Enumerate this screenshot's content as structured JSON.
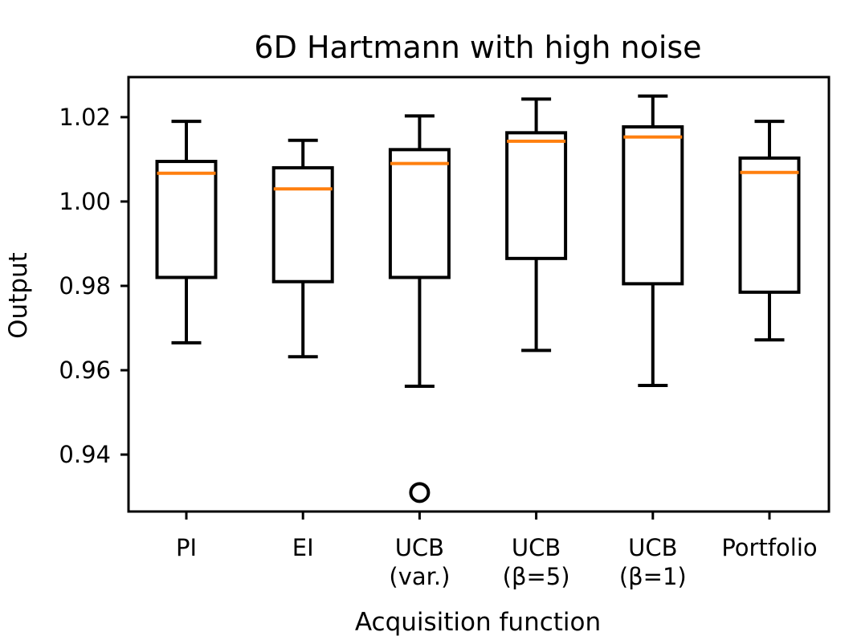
{
  "chart_data": {
    "type": "box",
    "title": "6D Hartmann with high noise",
    "xlabel": "Acquisition function",
    "ylabel": "Output",
    "ylim": [
      0.9265,
      1.0295
    ],
    "yticks": [
      0.94,
      0.96,
      0.98,
      1.0,
      1.02
    ],
    "ytick_labels": [
      "0.94",
      "0.96",
      "0.98",
      "1.00",
      "1.02"
    ],
    "categories": [
      {
        "label_lines": [
          "PI"
        ]
      },
      {
        "label_lines": [
          "EI"
        ]
      },
      {
        "label_lines": [
          "UCB",
          "(var.)"
        ]
      },
      {
        "label_lines": [
          "UCB",
          "(β=5)"
        ]
      },
      {
        "label_lines": [
          "UCB",
          "(β=1)"
        ]
      },
      {
        "label_lines": [
          "Portfolio"
        ]
      }
    ],
    "boxes": [
      {
        "whisker_low": 0.9665,
        "q1": 0.982,
        "median": 1.0067,
        "q3": 1.0095,
        "whisker_high": 1.019,
        "outliers": []
      },
      {
        "whisker_low": 0.9632,
        "q1": 0.981,
        "median": 1.003,
        "q3": 1.008,
        "whisker_high": 1.0145,
        "outliers": []
      },
      {
        "whisker_low": 0.9562,
        "q1": 0.982,
        "median": 1.009,
        "q3": 1.0123,
        "whisker_high": 1.0203,
        "outliers": [
          0.931
        ]
      },
      {
        "whisker_low": 0.9647,
        "q1": 0.9865,
        "median": 1.0143,
        "q3": 1.0163,
        "whisker_high": 1.0243,
        "outliers": []
      },
      {
        "whisker_low": 0.9564,
        "q1": 0.9805,
        "median": 1.0153,
        "q3": 1.0177,
        "whisker_high": 1.025,
        "outliers": []
      },
      {
        "whisker_low": 0.9672,
        "q1": 0.9785,
        "median": 1.0069,
        "q3": 1.0103,
        "whisker_high": 1.019,
        "outliers": []
      }
    ],
    "colors": {
      "median": "#ff7f0e",
      "box": "#000000"
    }
  }
}
